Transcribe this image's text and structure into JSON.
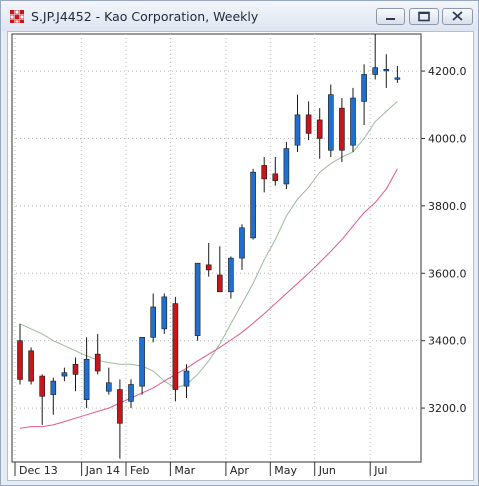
{
  "window": {
    "title": "S.JP.J4452 - Kao Corporation, Weekly",
    "controls": [
      "minimize",
      "maximize",
      "close"
    ]
  },
  "colors": {
    "up": "#1f6fd1",
    "down": "#c8141b",
    "ma_short": "#9bbb9b",
    "ma_long": "#e05a86",
    "grid": "#b9b9b9"
  },
  "chart_data": {
    "type": "candlestick",
    "title": "S.JP.J4452 - Kao Corporation, Weekly",
    "ylim": [
      3040,
      4310
    ],
    "yticks": [
      3200,
      3400,
      3600,
      3800,
      4000,
      4200
    ],
    "ytick_labels": [
      "3200.0",
      "3400.0",
      "3600.0",
      "3800.0",
      "4000.0",
      "4200.0"
    ],
    "xlabels": [
      {
        "label": "Dec 13",
        "week": 0
      },
      {
        "label": "Jan 14",
        "week": 6
      },
      {
        "label": "Feb",
        "week": 10
      },
      {
        "label": "Mar",
        "week": 14
      },
      {
        "label": "Apr",
        "week": 19
      },
      {
        "label": "May",
        "week": 23
      },
      {
        "label": "Jun",
        "week": 27
      },
      {
        "label": "Jul",
        "week": 32
      }
    ],
    "candles": [
      {
        "o": 3400,
        "h": 3450,
        "l": 3270,
        "c": 3285
      },
      {
        "o": 3370,
        "h": 3380,
        "l": 3270,
        "c": 3280
      },
      {
        "o": 3295,
        "h": 3300,
        "l": 3150,
        "c": 3235
      },
      {
        "o": 3240,
        "h": 3290,
        "l": 3180,
        "c": 3280
      },
      {
        "o": 3295,
        "h": 3320,
        "l": 3280,
        "c": 3305
      },
      {
        "o": 3330,
        "h": 3350,
        "l": 3250,
        "c": 3300
      },
      {
        "o": 3225,
        "h": 3410,
        "l": 3200,
        "c": 3345
      },
      {
        "o": 3360,
        "h": 3420,
        "l": 3300,
        "c": 3310
      },
      {
        "o": 3250,
        "h": 3320,
        "l": 3240,
        "c": 3275
      },
      {
        "o": 3255,
        "h": 3285,
        "l": 3050,
        "c": 3155
      },
      {
        "o": 3220,
        "h": 3285,
        "l": 3200,
        "c": 3270
      },
      {
        "o": 3265,
        "h": 3410,
        "l": 3240,
        "c": 3410
      },
      {
        "o": 3410,
        "h": 3540,
        "l": 3395,
        "c": 3500
      },
      {
        "o": 3435,
        "h": 3540,
        "l": 3420,
        "c": 3530
      },
      {
        "o": 3510,
        "h": 3530,
        "l": 3220,
        "c": 3255
      },
      {
        "o": 3265,
        "h": 3330,
        "l": 3230,
        "c": 3310
      },
      {
        "o": 3415,
        "h": 3630,
        "l": 3400,
        "c": 3630
      },
      {
        "o": 3625,
        "h": 3690,
        "l": 3590,
        "c": 3610
      },
      {
        "o": 3595,
        "h": 3680,
        "l": 3550,
        "c": 3545
      },
      {
        "o": 3545,
        "h": 3650,
        "l": 3525,
        "c": 3645
      },
      {
        "o": 3645,
        "h": 3745,
        "l": 3610,
        "c": 3735
      },
      {
        "o": 3705,
        "h": 3910,
        "l": 3700,
        "c": 3900
      },
      {
        "o": 3920,
        "h": 3945,
        "l": 3840,
        "c": 3880
      },
      {
        "o": 3895,
        "h": 3945,
        "l": 3860,
        "c": 3875
      },
      {
        "o": 3865,
        "h": 3990,
        "l": 3850,
        "c": 3970
      },
      {
        "o": 3980,
        "h": 4130,
        "l": 3960,
        "c": 4070
      },
      {
        "o": 4070,
        "h": 4110,
        "l": 3995,
        "c": 4015
      },
      {
        "o": 4055,
        "h": 4090,
        "l": 3940,
        "c": 4000
      },
      {
        "o": 3965,
        "h": 4160,
        "l": 3945,
        "c": 4130
      },
      {
        "o": 4090,
        "h": 4120,
        "l": 3930,
        "c": 3965
      },
      {
        "o": 3980,
        "h": 4150,
        "l": 3960,
        "c": 4120
      },
      {
        "o": 4110,
        "h": 4220,
        "l": 4040,
        "c": 4190
      },
      {
        "o": 4190,
        "h": 4310,
        "l": 4175,
        "c": 4210
      },
      {
        "o": 4205,
        "h": 4250,
        "l": 4150,
        "c": 4205
      },
      {
        "o": 4180,
        "h": 4215,
        "l": 4165,
        "c": 4180
      }
    ],
    "series": [
      {
        "values": [
          3450,
          3435,
          3420,
          3400,
          3385,
          3370,
          3355,
          3342,
          3335,
          3330,
          3330,
          3325,
          3310,
          3280,
          3260,
          3270,
          3300,
          3340,
          3390,
          3450,
          3510,
          3570,
          3640,
          3700,
          3770,
          3820,
          3855,
          3900,
          3925,
          3945,
          3960,
          4000,
          4050,
          4080,
          4110
        ]
      },
      {
        "values": [
          3140,
          3145,
          3145,
          3150,
          3160,
          3170,
          3180,
          3190,
          3200,
          3215,
          3230,
          3245,
          3260,
          3280,
          3300,
          3318,
          3340,
          3360,
          3380,
          3402,
          3425,
          3452,
          3480,
          3510,
          3540,
          3570,
          3600,
          3632,
          3665,
          3700,
          3740,
          3780,
          3810,
          3850,
          3910
        ]
      }
    ]
  }
}
